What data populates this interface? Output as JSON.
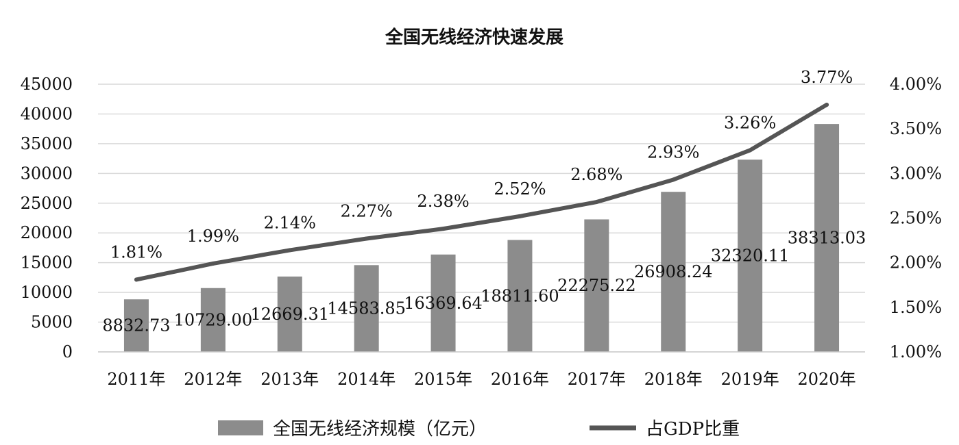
{
  "chart_data": {
    "type": "bar",
    "title": "全国无线经济快速发展",
    "categories": [
      "2011年",
      "2012年",
      "2013年",
      "2014年",
      "2015年",
      "2016年",
      "2017年",
      "2018年",
      "2019年",
      "2020年"
    ],
    "series": [
      {
        "name": "全国无线经济规模（亿元）",
        "type": "bar",
        "axis": "left",
        "color": "#8c8c8c",
        "values": [
          8832.73,
          10729.0,
          12669.31,
          14583.85,
          16369.64,
          18811.6,
          22275.22,
          26908.24,
          32320.11,
          38313.03
        ],
        "labels": [
          "8832.73",
          "10729.00",
          "12669.31",
          "14583.85",
          "16369.64",
          "18811.60",
          "22275.22",
          "26908.24",
          "32320.11",
          "38313.03"
        ]
      },
      {
        "name": "占GDP比重",
        "type": "line",
        "axis": "right",
        "color": "#555555",
        "values": [
          1.81,
          1.99,
          2.14,
          2.27,
          2.38,
          2.52,
          2.68,
          2.93,
          3.26,
          3.77
        ],
        "labels": [
          "1.81%",
          "1.99%",
          "2.14%",
          "2.27%",
          "2.38%",
          "2.52%",
          "2.68%",
          "2.93%",
          "3.26%",
          "3.77%"
        ]
      }
    ],
    "y_left": {
      "ylim": [
        0,
        45000
      ],
      "ticks": [
        0,
        5000,
        10000,
        15000,
        20000,
        25000,
        30000,
        35000,
        40000,
        45000
      ],
      "tick_labels": [
        "0",
        "5000",
        "10000",
        "15000",
        "20000",
        "25000",
        "30000",
        "35000",
        "40000",
        "45000"
      ]
    },
    "y_right": {
      "ylim": [
        1.0,
        4.0
      ],
      "ticks": [
        1.0,
        1.5,
        2.0,
        2.5,
        3.0,
        3.5,
        4.0
      ],
      "tick_labels": [
        "1.00%",
        "1.50%",
        "2.00%",
        "2.50%",
        "3.00%",
        "3.50%",
        "4.00%"
      ]
    },
    "xlabel": "",
    "ylabel": "",
    "grid": true,
    "legend_position": "bottom"
  }
}
